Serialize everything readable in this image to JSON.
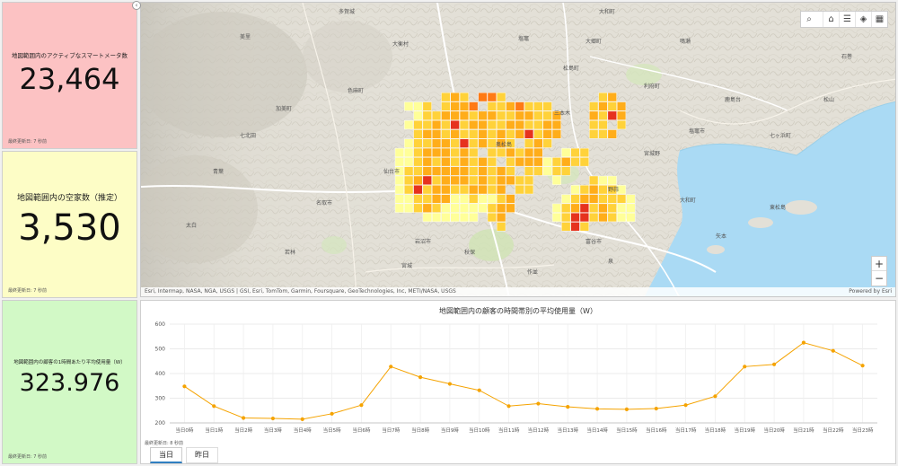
{
  "kpis": [
    {
      "title": "地図範囲内のアクティブなスマートメータ数",
      "value": "23,464",
      "footer": "最終更新日: 7 秒前"
    },
    {
      "title": "地図範囲内の空家数（推定）",
      "value": "3,530",
      "footer": "最終更新日: 7 秒前"
    },
    {
      "title": "地図範囲内の顧客の1時間あたり平均使用量（W）",
      "value": "323.976",
      "footer": "最終更新日: 7 秒前"
    }
  ],
  "map": {
    "attribution": "Esri, Intermap, NASA, NGA, USGS | GSI, Esri, TomTom, Garmin, Foursquare, GeoTechnologies, Inc, METI/NASA, USGS",
    "powered_by": "Powered by Esri",
    "toolbar": [
      "search-icon",
      "home-icon",
      "legend-icon",
      "layers-icon",
      "basemap-icon"
    ],
    "zoom_in": "+",
    "zoom_out": "−",
    "place_labels": [
      "大和町",
      "大郷町",
      "松島町",
      "利府町",
      "塩竈市",
      "七ヶ浜町",
      "石巻",
      "大衡村",
      "色麻町",
      "加美町",
      "仙台市",
      "名取市",
      "岩沼市",
      "富谷市",
      "大和町",
      "東松島",
      "矢本",
      "宮城",
      "秋保",
      "作並",
      "泉",
      "七北田",
      "青葉",
      "太白",
      "若林",
      "宮城野",
      "野蒜",
      "奥松島",
      "多賀城",
      "塩竈",
      "鳴瀬",
      "鹿島台",
      "松山",
      "三本木",
      "美里"
    ],
    "heat_colors": [
      "#ffff99",
      "#ffd23a",
      "#ffad1a",
      "#ff7a14",
      "#e6321e"
    ]
  },
  "chart": {
    "title": "地図範囲内の顧客の時間帯別の平均使用量（W）",
    "footer": "最終更新日: 8 秒前",
    "tabs": [
      "当日",
      "昨日"
    ],
    "active_tab": 0
  },
  "chart_data": {
    "type": "line",
    "title": "地図範囲内の顧客の時間帯別の平均使用量（W）",
    "categories": [
      "当日0時",
      "当日1時",
      "当日2時",
      "当日3時",
      "当日4時",
      "当日5時",
      "当日6時",
      "当日7時",
      "当日8時",
      "当日9時",
      "当日10時",
      "当日11時",
      "当日12時",
      "当日13時",
      "当日14時",
      "当日15時",
      "当日16時",
      "当日17時",
      "当日18時",
      "当日19時",
      "当日20時",
      "当日21時",
      "当日22時",
      "当日23時"
    ],
    "values": [
      348,
      268,
      220,
      218,
      215,
      237,
      272,
      428,
      385,
      358,
      332,
      268,
      278,
      265,
      257,
      255,
      258,
      272,
      308,
      428,
      437,
      525,
      492,
      432
    ],
    "ylim": [
      200,
      600
    ],
    "yticks": [
      200,
      300,
      400,
      500,
      600
    ],
    "color": "#f5a300",
    "grid": true
  }
}
